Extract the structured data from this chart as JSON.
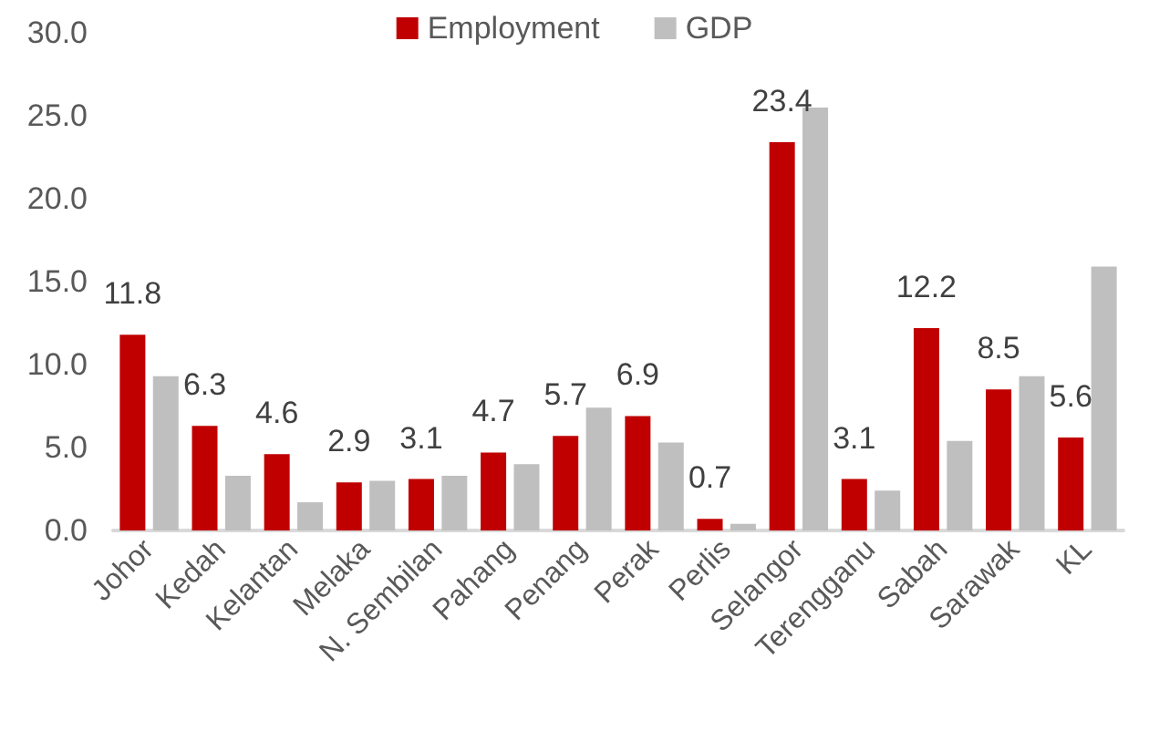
{
  "chart_data": {
    "type": "bar",
    "categories": [
      "Johor",
      "Kedah",
      "Kelantan",
      "Melaka",
      "N. Sembilan",
      "Pahang",
      "Penang",
      "Perak",
      "Perlis",
      "Selangor",
      "Terengganu",
      "Sabah",
      "Sarawak",
      "KL"
    ],
    "series": [
      {
        "name": "Employment",
        "color": "#c00000",
        "values": [
          11.8,
          6.3,
          4.6,
          2.9,
          3.1,
          4.7,
          5.7,
          6.9,
          0.7,
          23.4,
          3.1,
          12.2,
          8.5,
          5.6
        ],
        "value_labels": [
          "11.8",
          "6.3",
          "4.6",
          "2.9",
          "3.1",
          "4.7",
          "5.7",
          "6.9",
          "0.7",
          "23.4",
          "3.1",
          "12.2",
          "8.5",
          "5.6"
        ]
      },
      {
        "name": "GDP",
        "color": "#bfbfbf",
        "values": [
          9.3,
          3.3,
          1.7,
          3.0,
          3.3,
          4.0,
          7.4,
          5.3,
          0.4,
          25.5,
          2.4,
          5.4,
          9.3,
          15.9
        ]
      }
    ],
    "ylim": [
      0,
      30
    ],
    "yticks": [
      {
        "value": 0,
        "label": "0.0"
      },
      {
        "value": 5,
        "label": "5.0"
      },
      {
        "value": 10,
        "label": "10.0"
      },
      {
        "value": 15,
        "label": "15.0"
      },
      {
        "value": 20,
        "label": "20.0"
      },
      {
        "value": 25,
        "label": "25.0"
      },
      {
        "value": 30,
        "label": "30.0"
      }
    ],
    "grid": false,
    "legend": "top"
  }
}
